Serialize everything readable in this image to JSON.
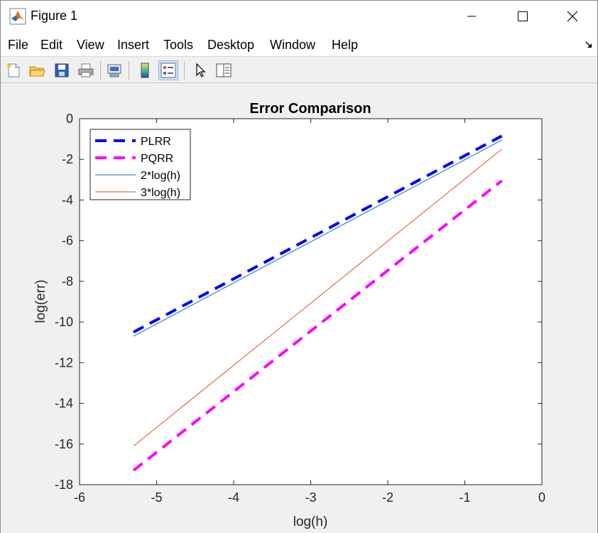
{
  "window": {
    "title": "Figure 1",
    "icon": "matlab-logo-icon"
  },
  "menu": {
    "items": [
      "File",
      "Edit",
      "View",
      "Insert",
      "Tools",
      "Desktop",
      "Window",
      "Help"
    ]
  },
  "toolbar": {
    "buttons": [
      "new-figure-icon",
      "open-file-icon",
      "save-icon",
      "print-icon",
      "link-plot-icon",
      "colorbar-icon",
      "legend-icon",
      "pointer-icon",
      "property-inspector-icon"
    ]
  },
  "chart_data": {
    "type": "line",
    "title": "Error Comparison",
    "xlabel": "log(h)",
    "ylabel": "log(err)",
    "xlim": [
      -6,
      0
    ],
    "ylim": [
      -18,
      0
    ],
    "xticks": [
      -6,
      -5,
      -4,
      -3,
      -2,
      -1,
      0
    ],
    "yticks": [
      0,
      -2,
      -4,
      -6,
      -8,
      -10,
      -12,
      -14,
      -16,
      -18
    ],
    "grid": false,
    "legend_position": "top-left",
    "series": [
      {
        "name": "PLRR",
        "color": "#0000ff",
        "style": "dashed",
        "x": [
          -5.3,
          -0.52
        ],
        "y": [
          -10.5,
          -0.85
        ]
      },
      {
        "name": "PQRR",
        "color": "#ff00ff",
        "style": "dashed",
        "x": [
          -5.3,
          -0.52
        ],
        "y": [
          -17.3,
          -3.05
        ]
      },
      {
        "name": "2*log(h)",
        "color": "#0072bd",
        "style": "solid",
        "x": [
          -5.3,
          -0.52
        ],
        "y": [
          -10.7,
          -1.05
        ]
      },
      {
        "name": "3*log(h)",
        "color": "#d95319",
        "style": "solid",
        "x": [
          -5.3,
          -0.52
        ],
        "y": [
          -16.1,
          -1.5
        ]
      }
    ]
  }
}
